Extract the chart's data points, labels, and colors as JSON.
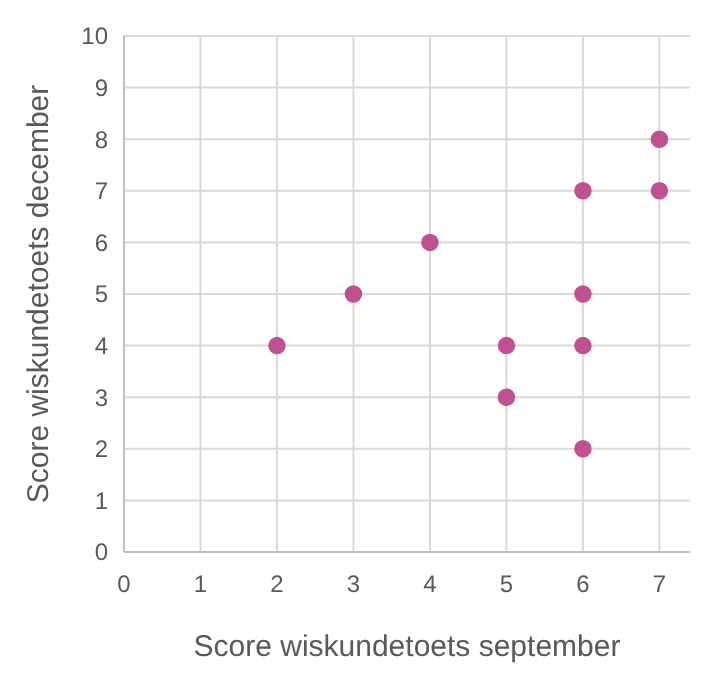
{
  "chart_data": {
    "type": "scatter",
    "xlabel": "Score wiskundetoets september",
    "ylabel": "Score wiskundetoets december",
    "x": [
      2,
      3,
      4,
      5,
      5,
      6,
      6,
      6,
      6,
      7,
      7
    ],
    "values": [
      4,
      5,
      6,
      4,
      3,
      7,
      5,
      4,
      2,
      8,
      7
    ],
    "color": "#c0508e",
    "marker": "circle",
    "xlim": [
      0,
      7.4
    ],
    "xticks": [
      0,
      1,
      2,
      3,
      4,
      5,
      6,
      7
    ],
    "ylim": [
      0,
      10
    ],
    "yticks": [
      0,
      1,
      2,
      3,
      4,
      5,
      6,
      7,
      8,
      9,
      10
    ],
    "grid": true
  }
}
